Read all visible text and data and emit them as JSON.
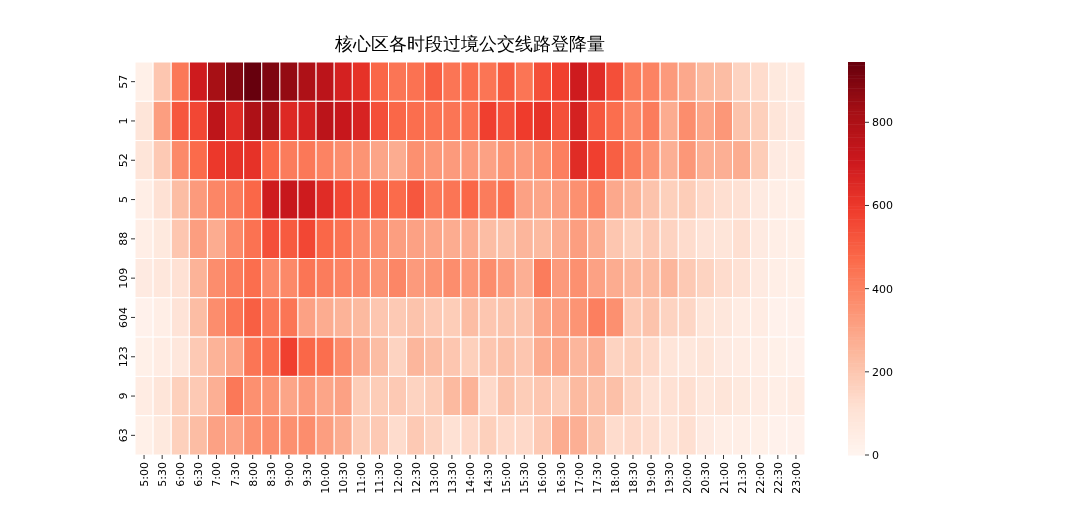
{
  "chart_data": {
    "type": "heatmap",
    "title": "核心区各时段过境公交线路登降量",
    "categories": [
      "5:00",
      "5:30",
      "6:00",
      "6:30",
      "7:00",
      "7:30",
      "8:00",
      "8:30",
      "9:00",
      "9:30",
      "10:00",
      "10:30",
      "11:00",
      "11:30",
      "12:00",
      "12:30",
      "13:00",
      "13:30",
      "14:00",
      "14:30",
      "15:00",
      "15:30",
      "16:00",
      "16:30",
      "17:00",
      "17:30",
      "18:00",
      "18:30",
      "19:00",
      "19:30",
      "20:00",
      "20:30",
      "21:00",
      "21:30",
      "22:00",
      "22:30",
      "23:00"
    ],
    "y_categories": [
      "57",
      "1",
      "52",
      "5",
      "88",
      "109",
      "604",
      "123",
      "9",
      "63"
    ],
    "cells": [
      [
        30,
        200,
        430,
        700,
        820,
        890,
        945,
        900,
        860,
        800,
        760,
        680,
        620,
        480,
        440,
        450,
        500,
        440,
        460,
        440,
        510,
        440,
        540,
        580,
        700,
        640,
        540,
        420,
        400,
        330,
        290,
        240,
        230,
        160,
        130,
        70,
        50
      ],
      [
        90,
        320,
        520,
        560,
        750,
        640,
        800,
        820,
        650,
        680,
        760,
        720,
        670,
        540,
        480,
        460,
        450,
        440,
        450,
        580,
        540,
        590,
        620,
        540,
        680,
        520,
        460,
        390,
        420,
        280,
        370,
        300,
        340,
        210,
        170,
        90,
        60
      ],
      [
        90,
        190,
        380,
        470,
        600,
        620,
        620,
        480,
        420,
        430,
        400,
        370,
        350,
        300,
        280,
        360,
        340,
        330,
        330,
        310,
        350,
        330,
        360,
        410,
        640,
        580,
        500,
        420,
        350,
        270,
        340,
        270,
        270,
        280,
        180,
        60,
        50
      ],
      [
        40,
        110,
        230,
        330,
        390,
        420,
        480,
        700,
        720,
        700,
        640,
        560,
        500,
        500,
        470,
        520,
        430,
        440,
        480,
        420,
        450,
        310,
        300,
        320,
        360,
        400,
        290,
        260,
        210,
        170,
        180,
        140,
        120,
        110,
        60,
        40,
        30
      ],
      [
        40,
        70,
        200,
        320,
        280,
        380,
        450,
        540,
        510,
        560,
        480,
        450,
        380,
        360,
        320,
        310,
        300,
        280,
        280,
        230,
        220,
        250,
        240,
        280,
        320,
        280,
        200,
        170,
        190,
        160,
        130,
        100,
        90,
        120,
        60,
        40,
        30
      ],
      [
        60,
        80,
        110,
        260,
        370,
        420,
        460,
        380,
        380,
        440,
        420,
        400,
        380,
        350,
        390,
        330,
        350,
        370,
        340,
        370,
        330,
        270,
        420,
        330,
        360,
        310,
        280,
        250,
        240,
        250,
        190,
        160,
        130,
        110,
        60,
        40,
        30
      ],
      [
        20,
        40,
        100,
        230,
        370,
        440,
        500,
        430,
        440,
        310,
        280,
        260,
        240,
        200,
        190,
        210,
        190,
        180,
        230,
        200,
        210,
        210,
        300,
        320,
        350,
        410,
        360,
        190,
        210,
        160,
        150,
        90,
        80,
        50,
        50,
        20,
        20
      ],
      [
        30,
        50,
        80,
        190,
        260,
        300,
        440,
        460,
        580,
        480,
        460,
        380,
        290,
        230,
        160,
        250,
        230,
        200,
        170,
        200,
        220,
        200,
        280,
        300,
        250,
        270,
        160,
        170,
        140,
        90,
        80,
        90,
        60,
        50,
        40,
        30,
        20
      ],
      [
        50,
        90,
        170,
        190,
        270,
        430,
        360,
        350,
        300,
        330,
        300,
        310,
        180,
        180,
        190,
        160,
        180,
        240,
        260,
        140,
        210,
        180,
        200,
        180,
        240,
        220,
        220,
        160,
        110,
        110,
        120,
        80,
        90,
        70,
        50,
        40,
        50
      ],
      [
        30,
        70,
        170,
        230,
        310,
        310,
        360,
        370,
        360,
        370,
        320,
        280,
        180,
        190,
        130,
        190,
        160,
        110,
        140,
        170,
        140,
        140,
        190,
        280,
        270,
        210,
        130,
        140,
        120,
        90,
        120,
        60,
        40,
        40,
        30,
        20,
        20
      ]
    ],
    "clim": [
      0,
      945
    ],
    "cticks": [
      0,
      200,
      400,
      600,
      800
    ]
  }
}
